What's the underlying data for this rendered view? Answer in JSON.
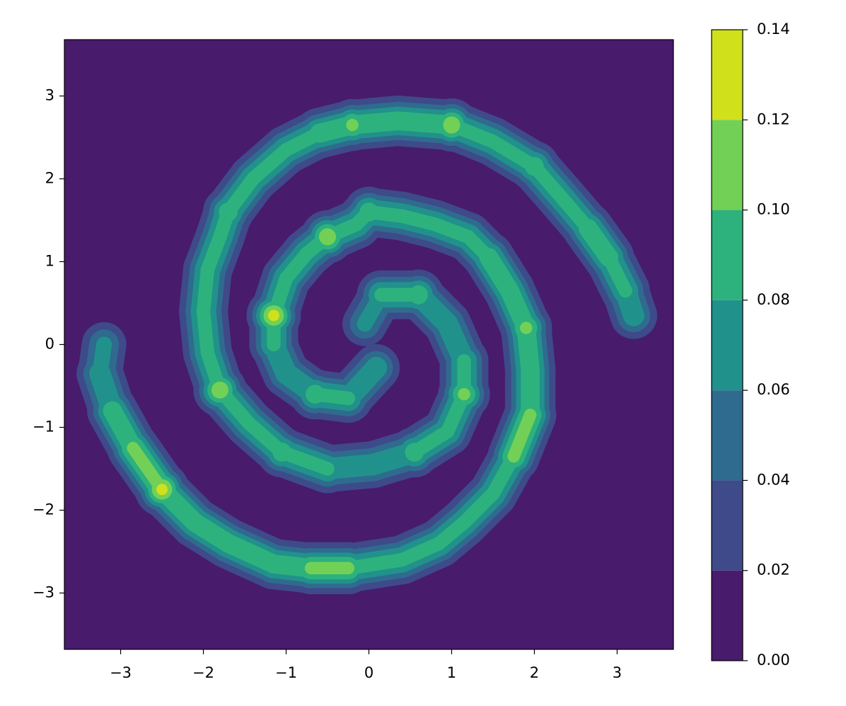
{
  "chart_data": {
    "type": "contour",
    "xlim": [
      -3.68,
      3.68
    ],
    "ylim": [
      -3.68,
      3.68
    ],
    "xticks": [
      {
        "value": -3,
        "label": "−3"
      },
      {
        "value": -2,
        "label": "−2"
      },
      {
        "value": -1,
        "label": "−1"
      },
      0,
      1,
      2,
      3
    ],
    "yticks": [
      {
        "value": -3,
        "label": "−3"
      },
      {
        "value": -2,
        "label": "−2"
      },
      {
        "value": -1,
        "label": "−1"
      },
      0,
      1,
      2,
      3
    ],
    "zticks": [
      {
        "value": 0,
        "label": "0.00"
      },
      0.02,
      0.04,
      0.06,
      0.08,
      {
        "value": 0.1,
        "label": "0.10"
      },
      0.12,
      0.14
    ],
    "colors": [
      "#481b6d",
      "#3e4a89",
      "#2f6b8e",
      "#21918c",
      "#2db27d",
      "#73d056",
      "#d0e11c"
    ],
    "series": [
      {
        "x": [
          0.09,
          -0.25,
          -0.65,
          -1.0,
          -1.15,
          -1.15,
          -1.0,
          -0.75,
          -0.5,
          -0.15,
          0.0,
          0.4,
          0.8,
          1.2,
          1.45,
          1.7,
          1.9,
          1.95,
          1.95,
          1.75,
          1.5,
          1.15,
          0.85,
          0.4,
          -0.25,
          -0.7,
          -1.15,
          -1.7,
          -2.1,
          -2.5,
          -2.85,
          -3.1,
          -3.25,
          -3.2
        ],
        "y": [
          -0.28,
          -0.65,
          -0.6,
          -0.35,
          0.0,
          0.35,
          0.8,
          1.1,
          1.3,
          1.45,
          1.6,
          1.55,
          1.45,
          1.3,
          1.05,
          0.65,
          0.2,
          -0.3,
          -0.85,
          -1.35,
          -1.8,
          -2.15,
          -2.4,
          -2.6,
          -2.7,
          -2.7,
          -2.65,
          -2.4,
          -2.15,
          -1.75,
          -1.25,
          -0.8,
          -0.35,
          0.0
        ],
        "z": [
          0.08,
          0.09,
          0.1,
          0.08,
          0.09,
          0.13,
          0.09,
          0.09,
          0.12,
          0.09,
          0.1,
          0.09,
          0.09,
          0.09,
          0.1,
          0.1,
          0.11,
          0.1,
          0.11,
          0.11,
          0.09,
          0.09,
          0.09,
          0.09,
          0.11,
          0.11,
          0.1,
          0.1,
          0.1,
          0.13,
          0.11,
          0.1,
          0.08,
          0.07
        ]
      },
      {
        "x": [
          -0.05,
          0.15,
          0.6,
          0.95,
          1.15,
          1.15,
          0.95,
          0.55,
          0.05,
          -0.5,
          -1.05,
          -1.45,
          -1.8,
          -1.95,
          -2.0,
          -1.95,
          -1.8,
          -1.7,
          -1.4,
          -1.0,
          -0.6,
          -0.2,
          0.35,
          1.0,
          1.5,
          2.0,
          2.35,
          2.65,
          2.9,
          3.1,
          3.2
        ],
        "y": [
          0.25,
          0.6,
          0.6,
          0.25,
          -0.2,
          -0.6,
          -1.05,
          -1.3,
          -1.45,
          -1.5,
          -1.3,
          -0.95,
          -0.55,
          -0.1,
          0.4,
          0.9,
          1.3,
          1.6,
          2.0,
          2.35,
          2.55,
          2.65,
          2.7,
          2.65,
          2.45,
          2.15,
          1.75,
          1.4,
          1.05,
          0.65,
          0.35
        ],
        "z": [
          0.07,
          0.09,
          0.1,
          0.08,
          0.09,
          0.11,
          0.09,
          0.1,
          0.08,
          0.09,
          0.1,
          0.09,
          0.12,
          0.09,
          0.09,
          0.09,
          0.09,
          0.1,
          0.09,
          0.09,
          0.1,
          0.11,
          0.1,
          0.12,
          0.09,
          0.1,
          0.09,
          0.1,
          0.1,
          0.09,
          0.08
        ]
      }
    ]
  }
}
